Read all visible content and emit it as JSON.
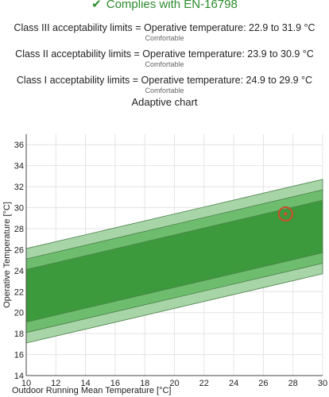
{
  "header": {
    "status_icon": "check-icon",
    "status_text": "Complies with EN-16798",
    "status_color": "#2e8b2e"
  },
  "limits": [
    {
      "text": "Class III acceptability limits = Operative temperature: 22.9 to 31.9 °C",
      "note": "Comfortable"
    },
    {
      "text": "Class II acceptability limits = Operative temperature: 23.9 to 30.9 °C",
      "note": "Comfortable"
    },
    {
      "text": "Class I acceptability limits = Operative temperature: 24.9 to 29.9 °C",
      "note": "Comfortable"
    }
  ],
  "chart_data": {
    "type": "area",
    "title": "Adaptive chart",
    "xlabel": "Outdoor Running Mean Temperature [°C]",
    "ylabel": "Operative Temperature [°C]",
    "xlim": [
      10,
      30
    ],
    "ylim": [
      14,
      37
    ],
    "x_ticks": [
      10,
      12,
      14,
      16,
      18,
      20,
      22,
      24,
      26,
      28,
      30
    ],
    "y_ticks": [
      14,
      16,
      18,
      20,
      22,
      24,
      26,
      28,
      30,
      32,
      34,
      36
    ],
    "grid": true,
    "comfort_line": {
      "slope": 0.33,
      "intercept": 18.8
    },
    "bands": [
      {
        "name": "Class III",
        "x": [
          10,
          30
        ],
        "upper": [
          26.1,
          32.7
        ],
        "lower": [
          17.1,
          23.7
        ],
        "color": "#a8d5a8"
      },
      {
        "name": "Class II",
        "x": [
          10,
          30
        ],
        "upper": [
          25.1,
          31.7
        ],
        "lower": [
          18.1,
          24.7
        ],
        "color": "#6ebd6e"
      },
      {
        "name": "Class I",
        "x": [
          10,
          30
        ],
        "upper": [
          24.1,
          30.7
        ],
        "lower": [
          19.1,
          25.7
        ],
        "color": "#3c9a3c"
      }
    ],
    "point": {
      "x": 27.5,
      "y": 29.4,
      "color": "#c8502a"
    }
  }
}
